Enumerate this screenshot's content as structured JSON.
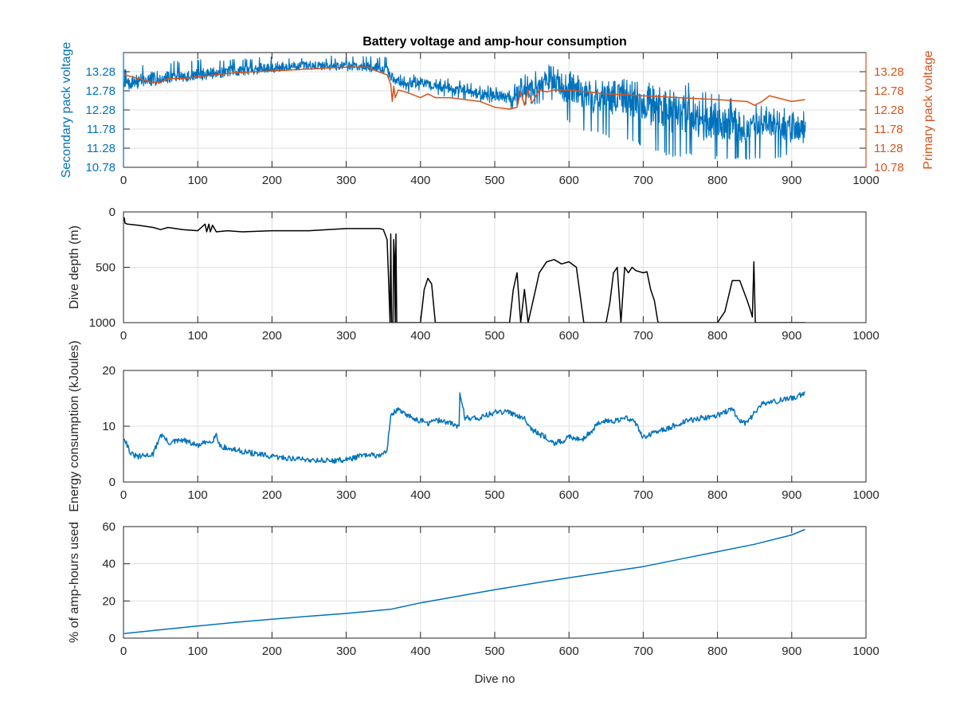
{
  "colors": {
    "blue": "#0072BD",
    "orange": "#D95319",
    "black": "#000000",
    "axis": "#262626",
    "grid": "#dfdfdf"
  },
  "chart_data": [
    {
      "type": "line",
      "title": "Battery voltage and amp-hour consumption",
      "xlim": [
        0,
        1000
      ],
      "xticks": [
        0,
        100,
        200,
        300,
        400,
        500,
        600,
        700,
        800,
        900,
        1000
      ],
      "y_left": {
        "label": "Secondary pack voltage",
        "lim": [
          10.78,
          13.78
        ],
        "ticks": [
          10.78,
          11.28,
          11.78,
          12.28,
          12.78,
          13.28
        ],
        "color": "#0072BD"
      },
      "y_right": {
        "label": "Primary pack voltage",
        "lim": [
          10.78,
          13.78
        ],
        "ticks": [
          10.78,
          11.28,
          11.78,
          12.28,
          12.78,
          13.28
        ],
        "color": "#D95319"
      },
      "grid": true,
      "series": [
        {
          "axis": "left",
          "color": "#0072BD",
          "noisy": true,
          "x": [
            1,
            20,
            40,
            60,
            80,
            100,
            120,
            150,
            200,
            250,
            300,
            340,
            355,
            360,
            365,
            380,
            400,
            420,
            440,
            460,
            480,
            500,
            520,
            540,
            560,
            570,
            580,
            590,
            600,
            620,
            640,
            660,
            680,
            700,
            720,
            740,
            760,
            780,
            800,
            820,
            840,
            860,
            880,
            900,
            918
          ],
          "y": [
            12.95,
            13.05,
            13.1,
            13.15,
            13.15,
            13.2,
            13.25,
            13.3,
            13.4,
            13.45,
            13.45,
            13.4,
            13.35,
            13.1,
            13.05,
            12.95,
            13.0,
            12.9,
            12.85,
            12.8,
            12.7,
            12.65,
            12.6,
            12.8,
            12.9,
            13.05,
            13.0,
            12.85,
            12.85,
            12.7,
            12.55,
            12.6,
            12.5,
            12.45,
            12.3,
            12.2,
            12.25,
            12.0,
            11.95,
            12.0,
            11.8,
            11.95,
            11.9,
            11.8,
            11.7
          ],
          "low": [
            12.75,
            12.85,
            12.9,
            13.0,
            13.05,
            13.05,
            13.1,
            13.15,
            13.25,
            13.3,
            13.3,
            13.25,
            13.2,
            12.7,
            12.8,
            12.7,
            12.8,
            12.7,
            12.6,
            12.55,
            12.5,
            12.45,
            12.3,
            12.4,
            12.4,
            12.6,
            12.5,
            12.1,
            11.9,
            11.7,
            11.7,
            11.5,
            11.5,
            11.3,
            11.2,
            11.0,
            11.1,
            11.0,
            11.0,
            11.0,
            10.95,
            11.0,
            11.0,
            11.05,
            11.2
          ],
          "high": [
            13.4,
            13.45,
            13.5,
            13.55,
            13.6,
            13.6,
            13.62,
            13.65,
            13.68,
            13.68,
            13.7,
            13.68,
            13.7,
            13.35,
            13.3,
            13.2,
            13.2,
            13.15,
            13.1,
            13.05,
            12.95,
            12.9,
            12.9,
            13.2,
            13.35,
            13.5,
            13.45,
            13.3,
            13.3,
            13.2,
            13.05,
            13.1,
            13.1,
            13.05,
            12.9,
            12.8,
            13.0,
            12.75,
            12.7,
            12.6,
            12.5,
            12.4,
            12.35,
            12.3,
            12.25
          ]
        },
        {
          "axis": "right",
          "color": "#D95319",
          "noisy": false,
          "x": [
            1,
            20,
            40,
            50,
            60,
            80,
            100,
            150,
            200,
            250,
            300,
            330,
            340,
            355,
            360,
            362,
            364,
            366,
            370,
            380,
            400,
            410,
            420,
            440,
            460,
            480,
            500,
            520,
            530,
            535,
            540,
            545,
            550,
            560,
            570,
            580,
            600,
            650,
            700,
            750,
            800,
            840,
            850,
            860,
            870,
            880,
            900,
            918
          ],
          "y": [
            13.2,
            13.1,
            13.0,
            13.0,
            13.1,
            13.1,
            13.15,
            13.25,
            13.3,
            13.35,
            13.4,
            13.4,
            13.3,
            13.2,
            12.95,
            12.5,
            12.9,
            12.6,
            12.8,
            12.75,
            12.6,
            12.7,
            12.6,
            12.6,
            12.55,
            12.5,
            12.35,
            12.3,
            12.35,
            12.75,
            12.4,
            12.8,
            12.45,
            12.8,
            12.75,
            12.8,
            12.8,
            12.7,
            12.65,
            12.6,
            12.55,
            12.5,
            12.4,
            12.5,
            12.65,
            12.6,
            12.5,
            12.55
          ]
        }
      ]
    },
    {
      "type": "line",
      "title": "",
      "xlim": [
        0,
        1000
      ],
      "xticks": [
        0,
        100,
        200,
        300,
        400,
        500,
        600,
        700,
        800,
        900,
        1000
      ],
      "ylabel": "Dive depth (m)",
      "ylim": [
        0,
        1000
      ],
      "yticks": [
        0,
        500,
        1000
      ],
      "y_reversed": true,
      "grid": true,
      "series": [
        {
          "color": "#000000",
          "x": [
            1,
            2,
            5,
            20,
            40,
            50,
            60,
            80,
            100,
            110,
            112,
            115,
            117,
            120,
            125,
            140,
            160,
            200,
            250,
            300,
            345,
            350,
            355,
            357,
            359,
            360,
            361,
            362,
            363,
            364,
            365,
            366,
            367,
            368,
            400,
            405,
            410,
            415,
            420,
            520,
            525,
            530,
            535,
            540,
            545,
            555,
            560,
            570,
            580,
            590,
            600,
            610,
            620,
            650,
            655,
            660,
            665,
            670,
            675,
            680,
            685,
            690,
            700,
            705,
            710,
            715,
            720,
            800,
            810,
            820,
            830,
            840,
            845,
            847,
            849,
            851,
            853,
            918
          ],
          "y": [
            50,
            100,
            110,
            120,
            140,
            160,
            140,
            160,
            170,
            110,
            180,
            110,
            180,
            120,
            180,
            170,
            180,
            170,
            170,
            150,
            150,
            160,
            250,
            600,
            1000,
            200,
            1000,
            1000,
            1000,
            250,
            400,
            1000,
            200,
            1000,
            1000,
            700,
            600,
            650,
            1000,
            1000,
            700,
            550,
            1000,
            700,
            1000,
            700,
            550,
            450,
            430,
            470,
            450,
            500,
            1000,
            1000,
            820,
            550,
            500,
            1000,
            500,
            550,
            500,
            530,
            550,
            540,
            700,
            800,
            1000,
            1000,
            900,
            620,
            620,
            800,
            900,
            950,
            450,
            1000,
            1000,
            1000
          ]
        }
      ]
    },
    {
      "type": "line",
      "title": "",
      "xlim": [
        0,
        1000
      ],
      "xticks": [
        0,
        100,
        200,
        300,
        400,
        500,
        600,
        700,
        800,
        900,
        1000
      ],
      "ylabel": "Energy consumption (kJoules)",
      "ylim": [
        0,
        20
      ],
      "yticks": [
        0,
        10,
        20
      ],
      "grid": true,
      "series": [
        {
          "color": "#0072BD",
          "jitter": 0.5,
          "x": [
            1,
            10,
            20,
            40,
            50,
            55,
            60,
            80,
            100,
            120,
            125,
            130,
            140,
            160,
            200,
            250,
            280,
            300,
            320,
            350,
            355,
            360,
            365,
            370,
            380,
            400,
            410,
            420,
            430,
            440,
            450,
            452,
            453,
            460,
            480,
            500,
            520,
            540,
            550,
            560,
            570,
            580,
            590,
            600,
            620,
            640,
            650,
            660,
            680,
            690,
            700,
            720,
            750,
            760,
            780,
            800,
            820,
            830,
            840,
            850,
            860,
            880,
            900,
            918
          ],
          "y": [
            8,
            5,
            4.5,
            5,
            8.5,
            8,
            7,
            7.5,
            6.5,
            7.5,
            8.5,
            6.5,
            6,
            5.5,
            4.5,
            4,
            3.8,
            4,
            4.7,
            4.8,
            6,
            12,
            12.5,
            13,
            12,
            11,
            10.5,
            11,
            11,
            10.5,
            10,
            10,
            16,
            11.5,
            11.5,
            12.5,
            12.5,
            11.5,
            9.5,
            8.5,
            8,
            7,
            7.2,
            8,
            7.8,
            10.5,
            11,
            11,
            11.5,
            10.5,
            8,
            9,
            10.5,
            11,
            11.5,
            12,
            13,
            11,
            10.5,
            12.5,
            14,
            14.5,
            15,
            16
          ]
        }
      ]
    },
    {
      "type": "line",
      "title": "",
      "xlim": [
        0,
        1000
      ],
      "xticks": [
        0,
        100,
        200,
        300,
        400,
        500,
        600,
        700,
        800,
        900,
        1000
      ],
      "xlabel": "Dive no",
      "ylabel": "% of amp-hours used",
      "ylim": [
        0,
        60
      ],
      "yticks": [
        0,
        20,
        40,
        60
      ],
      "grid": true,
      "series": [
        {
          "color": "#0072BD",
          "x": [
            1,
            50,
            100,
            150,
            200,
            250,
            300,
            360,
            400,
            450,
            500,
            560,
            600,
            650,
            700,
            750,
            800,
            850,
            900,
            918
          ],
          "y": [
            2.5,
            4.5,
            6.5,
            8.5,
            10.2,
            11.8,
            13.3,
            15.5,
            19,
            22.5,
            26,
            30,
            32.5,
            35.5,
            38.5,
            42.5,
            46.5,
            50.5,
            55.5,
            58.5
          ]
        }
      ]
    }
  ]
}
